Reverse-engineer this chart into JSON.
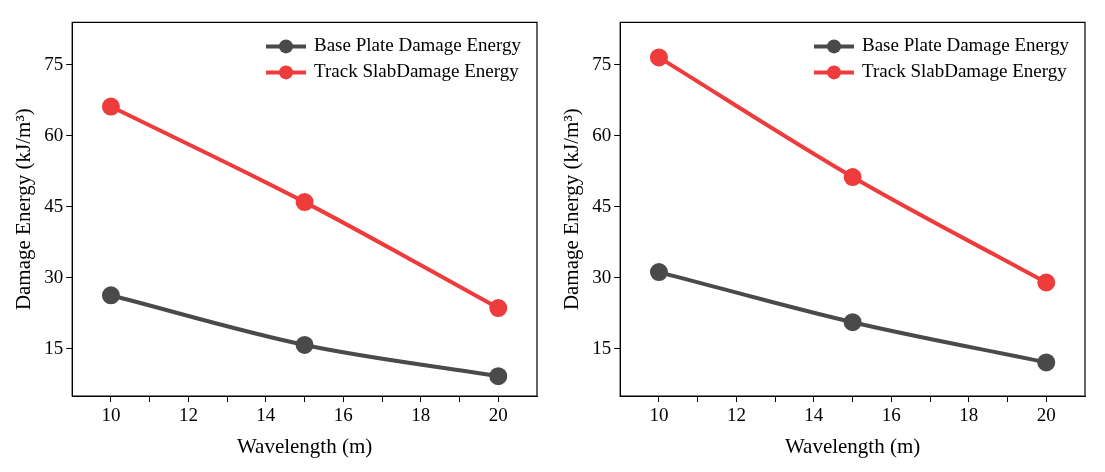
{
  "chart_data": [
    {
      "type": "line",
      "xlabel": "Wavelength (m)",
      "ylabel": "Damage Energy (kJ/m³)",
      "x": [
        10,
        15,
        20
      ],
      "xlim": [
        9,
        21
      ],
      "xticks": [
        10,
        {
          "value": 11,
          "label": null
        },
        12,
        {
          "value": 13,
          "label": null
        },
        14,
        {
          "value": 15,
          "label": null
        },
        16,
        {
          "value": 17,
          "label": null
        },
        18,
        {
          "value": 19,
          "label": null
        },
        20
      ],
      "ylim": [
        5,
        84
      ],
      "yticks": [
        15,
        30,
        45,
        60,
        75
      ],
      "grid": false,
      "legend": "top right",
      "marker": "circle",
      "line_style": "solid",
      "series": [
        {
          "name": "Base Plate Damage Energy",
          "color": "#4a4a4a",
          "values": [
            26.3,
            15.8,
            9.2
          ]
        },
        {
          "name": "Track SlabDamage Energy",
          "color": "#ee3b3b",
          "values": [
            66.2,
            46,
            23.6
          ]
        }
      ]
    },
    {
      "type": "line",
      "xlabel": "Wavelength (m)",
      "ylabel": "Damage Energy (kJ/m³)",
      "x": [
        10,
        15,
        20
      ],
      "xlim": [
        9,
        21
      ],
      "xticks": [
        10,
        {
          "value": 11,
          "label": null
        },
        12,
        {
          "value": 13,
          "label": null
        },
        14,
        {
          "value": 15,
          "label": null
        },
        16,
        {
          "value": 17,
          "label": null
        },
        18,
        {
          "value": 19,
          "label": null
        },
        20
      ],
      "ylim": [
        5,
        84
      ],
      "yticks": [
        15,
        30,
        45,
        60,
        75
      ],
      "grid": false,
      "legend": "top right",
      "marker": "circle",
      "line_style": "solid",
      "series": [
        {
          "name": "Base Plate Damage Energy",
          "color": "#4a4a4a",
          "values": [
            31.2,
            20.6,
            12.1
          ]
        },
        {
          "name": "Track SlabDamage Energy",
          "color": "#ee3b3b",
          "values": [
            76.6,
            51.3,
            29
          ]
        }
      ]
    }
  ]
}
